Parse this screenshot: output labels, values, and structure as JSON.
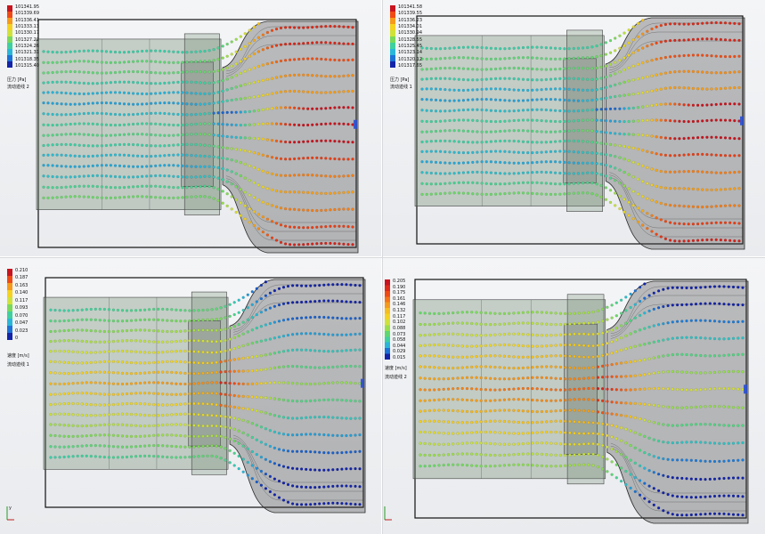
{
  "panels": [
    {
      "id": "pressure-trajectories-2",
      "legend_values": [
        "101341.95",
        "101339.69",
        "101336.41",
        "101333.13",
        "101330.17",
        "101327.22",
        "101324.26",
        "101321.31",
        "101318.35",
        "101315.40"
      ],
      "legend_colors": [
        "#c8141e",
        "#f04a14",
        "#f59a1a",
        "#f5d21f",
        "#cfe23a",
        "#7ad95a",
        "#3fd0a0",
        "#2ab6d8",
        "#1c72d6",
        "#1324a8"
      ],
      "unit_label": "压力 [Pa]",
      "series_label": "流动迹线 2",
      "field": "pressure"
    },
    {
      "id": "pressure-trajectories-1",
      "legend_values": [
        "101341.58",
        "101339.55",
        "101336.23",
        "101334.01",
        "101330.94",
        "101328.55",
        "101325.45",
        "101323.14",
        "101320.12",
        "101317.65"
      ],
      "legend_colors": [
        "#c8141e",
        "#f04a14",
        "#f59a1a",
        "#f5d21f",
        "#cfe23a",
        "#7ad95a",
        "#3fd0a0",
        "#2ab6d8",
        "#1c72d6",
        "#1324a8"
      ],
      "unit_label": "压力 [Pa]",
      "series_label": "流动迹线 1",
      "field": "pressure"
    },
    {
      "id": "velocity-trajectories-1",
      "legend_values": [
        "0.210",
        "0.187",
        "0.163",
        "0.140",
        "0.117",
        "0.093",
        "0.070",
        "0.047",
        "0.023",
        "0"
      ],
      "legend_colors": [
        "#c8141e",
        "#f04a14",
        "#f59a1a",
        "#f5d21f",
        "#cfe23a",
        "#7ad95a",
        "#3fd0a0",
        "#2ab6d8",
        "#1c72d6",
        "#1324a8"
      ],
      "unit_label": "速度 [m/s]",
      "series_label": "流动迹线 1",
      "field": "velocity"
    },
    {
      "id": "velocity-trajectories-2",
      "legend_values": [
        "0.205",
        "0.190",
        "0.175",
        "0.161",
        "0.146",
        "0.132",
        "0.117",
        "0.102",
        "0.088",
        "0.073",
        "0.058",
        "0.044",
        "0.029",
        "0.015"
      ],
      "legend_colors": [
        "#c8141e",
        "#e02a18",
        "#f04a14",
        "#f57316",
        "#f59a1a",
        "#f5bd1d",
        "#f5d21f",
        "#cfe23a",
        "#9ade4c",
        "#5dd870",
        "#3fd0a0",
        "#2ab6d8",
        "#1c72d6",
        "#1324a8"
      ],
      "unit_label": "速度 [m/s]",
      "series_label": "流动迹线 2",
      "field": "velocity"
    }
  ],
  "axis_labels": {
    "x": "x",
    "y": "y"
  }
}
